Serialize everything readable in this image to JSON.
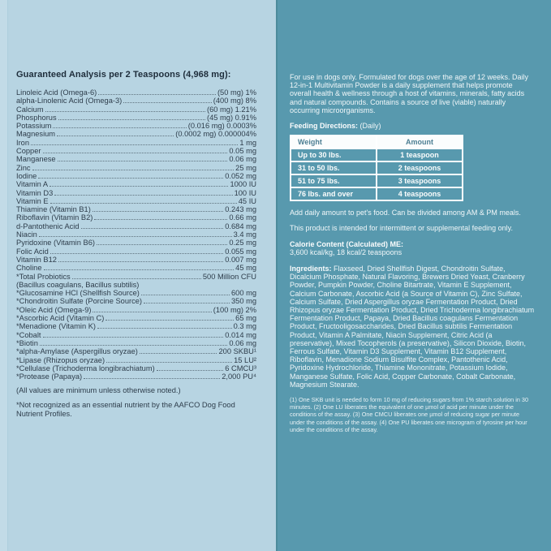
{
  "colors": {
    "left_background": "#b7d4e2",
    "right_background": "#5899ae",
    "left_text": "#2e3d4b",
    "right_text": "#f1f7f9",
    "table_header_text": "#4d7f93",
    "table_border": "#ffffff"
  },
  "left_panel": {
    "title": "Guaranteed Analysis per 2 Teaspoons (4,968 mg):",
    "rows": [
      {
        "label": "Linoleic Acid (Omega-6)",
        "value": "(50 mg) 1%"
      },
      {
        "label": "alpha-Linolenic Acid (Omega-3)",
        "value": "(400 mg) 8%"
      },
      {
        "label": "Calcium",
        "value": "(60 mg) 1.21%"
      },
      {
        "label": "Phosphorus",
        "value": "(45 mg) 0.91%"
      },
      {
        "label": "Potassium",
        "value": "(0.016 mg) 0.0003%"
      },
      {
        "label": "Magnesium",
        "value": "(0.0002 mg) 0.000004%"
      },
      {
        "label": "Iron",
        "value": "1 mg"
      },
      {
        "label": "Copper",
        "value": "0.05 mg"
      },
      {
        "label": "Manganese",
        "value": "0.06 mg"
      },
      {
        "label": "Zinc",
        "value": "25 mg"
      },
      {
        "label": "Iodine",
        "value": "0.052 mg"
      },
      {
        "label": "Vitamin A",
        "value": "1000 IU"
      },
      {
        "label": "Vitamin D3",
        "value": "100 IU"
      },
      {
        "label": "Vitamin E",
        "value": "45 IU"
      },
      {
        "label": "Thiamine (Vitamin B1)",
        "value": "0.243 mg"
      },
      {
        "label": "Riboflavin (Vitamin B2)",
        "value": "0.66 mg"
      },
      {
        "label": "d-Pantothenic Acid",
        "value": "0.684 mg"
      },
      {
        "label": "Niacin",
        "value": "3.4 mg"
      },
      {
        "label": "Pyridoxine (Vitamin B6)",
        "value": "0.25 mg"
      },
      {
        "label": "Folic Acid",
        "value": "0.055 mg"
      },
      {
        "label": "Vitamin B12",
        "value": "0.007 mg"
      },
      {
        "label": "Choline",
        "value": "45 mg"
      },
      {
        "label": "*Total Probiotics",
        "value": "500 Million CFU"
      },
      {
        "label": "(Bacillus coagulans, Bacillus subtilis)",
        "value": ""
      },
      {
        "label": "*Glucosamine HCl (Shellfish Source)",
        "value": "600 mg"
      },
      {
        "label": "*Chondroitin Sulfate (Porcine Source)",
        "value": "350 mg"
      },
      {
        "label": "*Oleic Acid (Omega-9)",
        "value": "(100 mg) 2%"
      },
      {
        "label": "*Ascorbic Acid (Vitamin C)",
        "value": "65 mg"
      },
      {
        "label": "*Menadione (Vitamin K)",
        "value": "0.3 mg"
      },
      {
        "label": "*Cobalt",
        "value": "0.014 mg"
      },
      {
        "label": "*Biotin",
        "value": "0.06 mg"
      },
      {
        "label": "*alpha-Amylase (Aspergillus oryzae)",
        "value": "200 SKBU¹"
      },
      {
        "label": "*Lipase (Rhizopus oryzae)",
        "value": "15 LU²"
      },
      {
        "label": "*Cellulase (Trichoderma longibrachiatum)",
        "value": "6 CMCU³"
      },
      {
        "label": "*Protease (Papaya)",
        "value": "2,000 PU⁴"
      }
    ],
    "note_minimum": "(All values are minimum unless otherwise noted.)",
    "note_asterisk": "*Not recognized as an essential nutrient by the AAFCO Dog Food Nutrient Profiles."
  },
  "right_panel": {
    "intro": "For use in dogs only. Formulated for dogs over the age of 12 weeks. Daily 12-in-1 Multivitamin Powder is a daily supplement that helps promote overall health & wellness through a host of vitamins, minerals, fatty acids and natural compounds. Contains a source of live (viable) naturally occurring microorganisms.",
    "feeding": {
      "heading": "Feeding Directions:",
      "heading_suffix": " (Daily)",
      "table": {
        "headers": {
          "weight": "Weight",
          "amount": "Amount"
        },
        "rows": [
          {
            "weight": "Up to 30 lbs.",
            "amount": "1 teaspoon"
          },
          {
            "weight": "31 to 50 lbs.",
            "amount": "2 teaspoons"
          },
          {
            "weight": "51 to 75 lbs.",
            "amount": "3 teaspoons"
          },
          {
            "weight": "76 lbs. and over",
            "amount": "4 teaspoons"
          }
        ]
      }
    },
    "add_daily": "Add daily amount to pet's food. Can be divided among AM & PM meals.",
    "intermittent": "This product is intended for intermittent or supplemental feeding only.",
    "calorie": {
      "heading": "Calorie Content (Calculated) ME:",
      "value": "3,600 kcal/kg, 18 kcal/2 teaspoons"
    },
    "ingredients": {
      "heading": "Ingredients:",
      "text": " Flaxseed, Dried Shellfish Digest, Chondroitin Sulfate, Dicalcium Phosphate, Natural Flavoring, Brewers Dried Yeast, Cranberry Powder, Pumpkin Powder, Choline Bitartrate, Vitamin E Supplement, Calcium Carbonate, Ascorbic Acid (a Source of Vitamin C), Zinc Sulfate, Calcium Sulfate, Dried Aspergillus oryzae Fermentation Product, Dried Rhizopus oryzae Fermentation Product, Dried Trichoderma longibrachiatum Fermentation Product, Papaya, Dried Bacillus coagulans Fermentation Product, Fructooligosaccharides, Dried Bacillus subtilis Fermentation Product, Vitamin A Palmitate, Niacin Supplement, Citric Acid (a preservative), Mixed Tocopherols (a preservative), Silicon Dioxide, Biotin, Ferrous Sulfate, Vitamin D3 Supplement, Vitamin B12 Supplement, Riboflavin, Menadione Sodium Bisulfite Complex, Pantothenic Acid, Pyridoxine Hydrochloride, Thiamine Mononitrate, Potassium Iodide, Manganese Sulfate, Folic Acid, Copper Carbonate, Cobalt Carbonate, Magnesium Stearate."
    },
    "footnotes": "(1) One SKB unit is needed to form 10 mg of reducing sugars from 1% starch solution in 30 minutes. (2) One LU liberates the equivalent of one µmol of acid per minute under the conditions of the assay. (3) One CMCU liberates one µmol of reducing sugar per minute under the conditions of the assay. (4) One PU liberates one microgram of tyrosine per hour under the conditions of the assay."
  }
}
